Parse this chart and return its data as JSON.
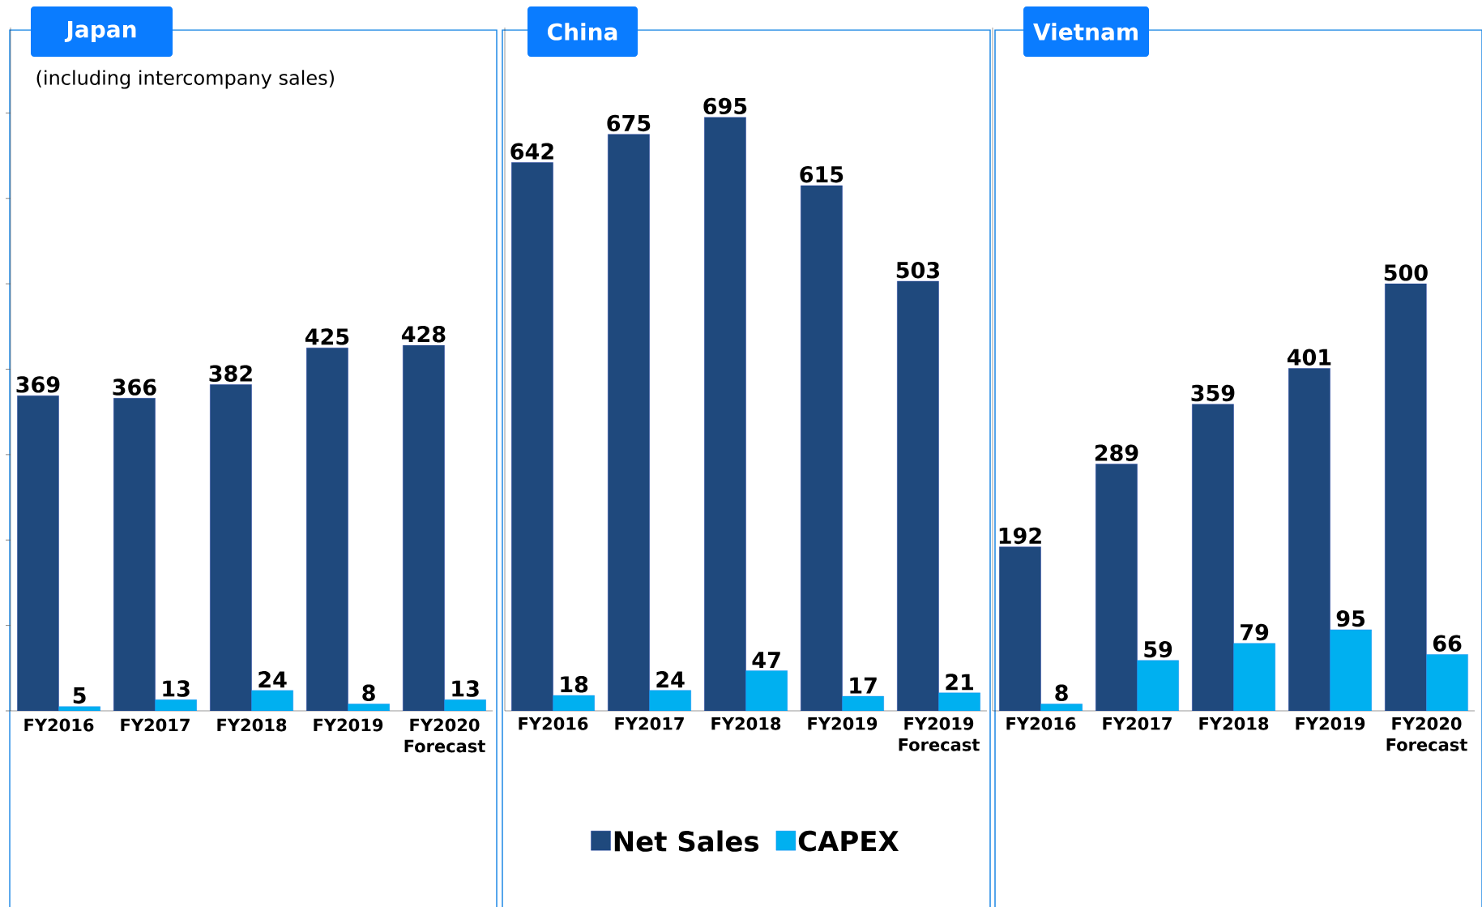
{
  "chart_data": [
    {
      "type": "bar",
      "title": "Japan",
      "subtitle": "(including intercompany sales)",
      "categories": [
        "FY2016",
        "FY2017",
        "FY2018",
        "FY2019",
        "FY2020 Forecast"
      ],
      "series": [
        {
          "color": "#1f497d",
          "values": [
            369,
            366,
            382,
            425,
            428
          ]
        },
        {
          "color": "#00b0f0",
          "values": [
            5,
            13,
            24,
            8,
            13
          ]
        }
      ],
      "ylim": [
        0,
        800
      ],
      "yticks": [
        {
          "value": 0,
          "label": null
        },
        {
          "value": 100,
          "label": null
        },
        {
          "value": 200,
          "label": null
        },
        {
          "value": 300,
          "label": null
        },
        {
          "value": 400,
          "label": null
        },
        {
          "value": 500,
          "label": null
        },
        {
          "value": 600,
          "label": null
        },
        {
          "value": 700,
          "label": null
        }
      ],
      "tick_labels": "x",
      "data_labels": true
    },
    {
      "type": "bar",
      "title": "China",
      "categories": [
        "FY2016",
        "FY2017",
        "FY2018",
        "FY2019",
        "FY2019 Forecast"
      ],
      "series": [
        {
          "name": "Net Sales",
          "color": "#1f497d",
          "values": [
            642,
            675,
            695,
            615,
            503
          ]
        },
        {
          "name": "CAPEX",
          "color": "#00b0f0",
          "values": [
            18,
            24,
            47,
            17,
            21
          ]
        }
      ],
      "ylim": [
        0,
        800
      ],
      "tick_labels": "x",
      "data_labels": true,
      "legend": "bottom"
    },
    {
      "type": "bar",
      "title": "Vietnam",
      "categories": [
        "FY2016",
        "FY2017",
        "FY2018",
        "FY2019",
        "FY2020 Forecast"
      ],
      "series": [
        {
          "color": "#1f497d",
          "values": [
            192,
            289,
            359,
            401,
            500
          ]
        },
        {
          "color": "#00b0f0",
          "values": [
            8,
            59,
            79,
            95,
            66
          ]
        }
      ],
      "ylim": [
        0,
        800
      ],
      "tick_labels": "x",
      "data_labels": true
    }
  ]
}
